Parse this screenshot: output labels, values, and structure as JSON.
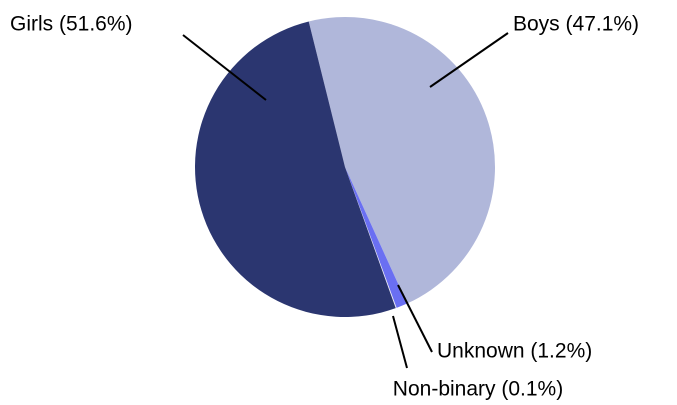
{
  "chart_data": {
    "type": "pie",
    "values": [
      47.1,
      1.2,
      0.1,
      51.6
    ],
    "value_labels": [
      "Boys (47.1%)",
      "Unknown (1.2%)",
      "Non-binary (0.1%)",
      "Girls (51.6%)"
    ],
    "colors": [
      "#b0b7da",
      "#6a6ff2",
      "#e8e8f4",
      "#2b3670"
    ]
  }
}
